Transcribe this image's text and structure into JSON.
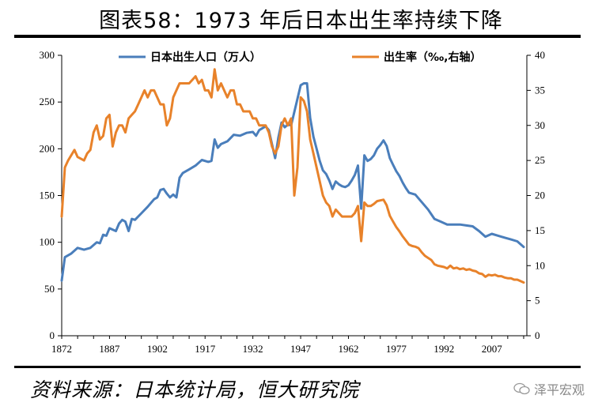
{
  "header": {
    "title": "图表58：1973 年后日本出生率持续下降"
  },
  "footer": {
    "source": "资料来源：日本统计局，恒大研究院",
    "watermark": "泽平宏观"
  },
  "chart_data": {
    "type": "line",
    "title": "图表58：1973 年后日本出生率持续下降",
    "x_ticks": [
      1872,
      1887,
      1902,
      1917,
      1932,
      1947,
      1962,
      1977,
      1992,
      2007
    ],
    "xlim": [
      1872,
      2018
    ],
    "y_left": {
      "lim": [
        0,
        300
      ],
      "ticks": [
        0,
        50,
        100,
        150,
        200,
        250,
        300
      ]
    },
    "y_right": {
      "lim": [
        0,
        40
      ],
      "ticks": [
        0,
        5,
        10,
        15,
        20,
        25,
        30,
        35,
        40
      ]
    },
    "series": [
      {
        "name": "日本出生人口（万人）",
        "axis": "left",
        "color": "#4a7ebb",
        "points": [
          [
            1872,
            59
          ],
          [
            1873,
            84
          ],
          [
            1875,
            88
          ],
          [
            1877,
            94
          ],
          [
            1879,
            92
          ],
          [
            1881,
            94
          ],
          [
            1883,
            100
          ],
          [
            1884,
            99
          ],
          [
            1885,
            108
          ],
          [
            1886,
            107
          ],
          [
            1887,
            115
          ],
          [
            1889,
            112
          ],
          [
            1890,
            120
          ],
          [
            1891,
            124
          ],
          [
            1892,
            122
          ],
          [
            1893,
            112
          ],
          [
            1894,
            125
          ],
          [
            1895,
            124
          ],
          [
            1897,
            131
          ],
          [
            1899,
            138
          ],
          [
            1901,
            146
          ],
          [
            1902,
            148
          ],
          [
            1903,
            156
          ],
          [
            1904,
            157
          ],
          [
            1905,
            152
          ],
          [
            1906,
            148
          ],
          [
            1907,
            151
          ],
          [
            1908,
            148
          ],
          [
            1909,
            169
          ],
          [
            1910,
            174
          ],
          [
            1912,
            178
          ],
          [
            1914,
            182
          ],
          [
            1916,
            188
          ],
          [
            1918,
            186
          ],
          [
            1919,
            187
          ],
          [
            1920,
            210
          ],
          [
            1921,
            201
          ],
          [
            1922,
            205
          ],
          [
            1924,
            208
          ],
          [
            1926,
            215
          ],
          [
            1928,
            214
          ],
          [
            1930,
            217
          ],
          [
            1932,
            218
          ],
          [
            1933,
            214
          ],
          [
            1934,
            220
          ],
          [
            1936,
            224
          ],
          [
            1937,
            220
          ],
          [
            1938,
            205
          ],
          [
            1939,
            190
          ],
          [
            1940,
            212
          ],
          [
            1941,
            228
          ],
          [
            1942,
            223
          ],
          [
            1943,
            226
          ],
          [
            1944,
            225
          ],
          [
            1947,
            268
          ],
          [
            1948,
            270
          ],
          [
            1949,
            270
          ],
          [
            1950,
            233
          ],
          [
            1951,
            213
          ],
          [
            1952,
            200
          ],
          [
            1953,
            187
          ],
          [
            1954,
            177
          ],
          [
            1955,
            173
          ],
          [
            1956,
            166
          ],
          [
            1957,
            157
          ],
          [
            1958,
            165
          ],
          [
            1959,
            162
          ],
          [
            1960,
            160
          ],
          [
            1961,
            159
          ],
          [
            1962,
            161
          ],
          [
            1963,
            166
          ],
          [
            1964,
            172
          ],
          [
            1965,
            182
          ],
          [
            1966,
            136
          ],
          [
            1967,
            193
          ],
          [
            1968,
            187
          ],
          [
            1969,
            189
          ],
          [
            1970,
            193
          ],
          [
            1971,
            200
          ],
          [
            1972,
            204
          ],
          [
            1973,
            209
          ],
          [
            1974,
            203
          ],
          [
            1975,
            190
          ],
          [
            1976,
            183
          ],
          [
            1977,
            176
          ],
          [
            1978,
            171
          ],
          [
            1979,
            164
          ],
          [
            1980,
            158
          ],
          [
            1981,
            153
          ],
          [
            1983,
            151
          ],
          [
            1985,
            143
          ],
          [
            1987,
            135
          ],
          [
            1989,
            125
          ],
          [
            1991,
            122
          ],
          [
            1993,
            119
          ],
          [
            1995,
            119
          ],
          [
            1997,
            119
          ],
          [
            1999,
            118
          ],
          [
            2001,
            117
          ],
          [
            2003,
            112
          ],
          [
            2005,
            106
          ],
          [
            2007,
            109
          ],
          [
            2009,
            107
          ],
          [
            2011,
            105
          ],
          [
            2013,
            103
          ],
          [
            2015,
            101
          ],
          [
            2017,
            95
          ]
        ]
      },
      {
        "name": "出生率（‰,右轴）",
        "axis": "right",
        "color": "#e8822a",
        "points": [
          [
            1872,
            17
          ],
          [
            1873,
            24
          ],
          [
            1874,
            25
          ],
          [
            1876,
            26.5
          ],
          [
            1877,
            25.5
          ],
          [
            1879,
            25
          ],
          [
            1880,
            26
          ],
          [
            1881,
            26.5
          ],
          [
            1882,
            29
          ],
          [
            1883,
            30
          ],
          [
            1884,
            28
          ],
          [
            1885,
            28.5
          ],
          [
            1886,
            31
          ],
          [
            1887,
            31.5
          ],
          [
            1888,
            27
          ],
          [
            1889,
            29
          ],
          [
            1890,
            30
          ],
          [
            1891,
            30
          ],
          [
            1892,
            29
          ],
          [
            1893,
            31
          ],
          [
            1894,
            31.5
          ],
          [
            1895,
            32
          ],
          [
            1896,
            33
          ],
          [
            1898,
            35
          ],
          [
            1899,
            34
          ],
          [
            1900,
            35
          ],
          [
            1901,
            35
          ],
          [
            1902,
            34
          ],
          [
            1903,
            33
          ],
          [
            1904,
            33
          ],
          [
            1905,
            30
          ],
          [
            1906,
            31
          ],
          [
            1907,
            34
          ],
          [
            1908,
            35
          ],
          [
            1909,
            36
          ],
          [
            1910,
            36
          ],
          [
            1911,
            36
          ],
          [
            1912,
            36
          ],
          [
            1914,
            37
          ],
          [
            1915,
            36
          ],
          [
            1916,
            36.5
          ],
          [
            1917,
            35
          ],
          [
            1918,
            35
          ],
          [
            1919,
            34
          ],
          [
            1920,
            38
          ],
          [
            1921,
            35
          ],
          [
            1922,
            36
          ],
          [
            1923,
            35
          ],
          [
            1924,
            34
          ],
          [
            1925,
            35
          ],
          [
            1926,
            35
          ],
          [
            1927,
            33
          ],
          [
            1928,
            33
          ],
          [
            1929,
            32
          ],
          [
            1930,
            32
          ],
          [
            1931,
            32
          ],
          [
            1932,
            31
          ],
          [
            1933,
            31
          ],
          [
            1934,
            30
          ],
          [
            1935,
            30
          ],
          [
            1936,
            30
          ],
          [
            1937,
            29
          ],
          [
            1938,
            27
          ],
          [
            1939,
            26
          ],
          [
            1940,
            27
          ],
          [
            1941,
            30
          ],
          [
            1942,
            31
          ],
          [
            1943,
            30
          ],
          [
            1944,
            31
          ],
          [
            1945,
            20
          ],
          [
            1946,
            24
          ],
          [
            1947,
            34
          ],
          [
            1948,
            33.5
          ],
          [
            1949,
            32
          ],
          [
            1950,
            28
          ],
          [
            1951,
            26
          ],
          [
            1952,
            24
          ],
          [
            1953,
            22
          ],
          [
            1954,
            20
          ],
          [
            1955,
            19
          ],
          [
            1956,
            18.5
          ],
          [
            1957,
            17
          ],
          [
            1958,
            18
          ],
          [
            1959,
            17.5
          ],
          [
            1960,
            17
          ],
          [
            1961,
            17
          ],
          [
            1962,
            17
          ],
          [
            1963,
            17
          ],
          [
            1964,
            17.5
          ],
          [
            1965,
            18.5
          ],
          [
            1966,
            13.5
          ],
          [
            1967,
            19
          ],
          [
            1968,
            18.5
          ],
          [
            1969,
            18.5
          ],
          [
            1970,
            18.8
          ],
          [
            1971,
            19.2
          ],
          [
            1972,
            19.3
          ],
          [
            1973,
            19.4
          ],
          [
            1974,
            18.6
          ],
          [
            1975,
            17.1
          ],
          [
            1976,
            16.3
          ],
          [
            1977,
            15.5
          ],
          [
            1978,
            14.9
          ],
          [
            1979,
            14.2
          ],
          [
            1980,
            13.6
          ],
          [
            1981,
            13.0
          ],
          [
            1982,
            12.8
          ],
          [
            1983,
            12.7
          ],
          [
            1984,
            12.5
          ],
          [
            1985,
            11.9
          ],
          [
            1986,
            11.4
          ],
          [
            1987,
            11.1
          ],
          [
            1988,
            10.8
          ],
          [
            1989,
            10.2
          ],
          [
            1990,
            10.0
          ],
          [
            1991,
            9.9
          ],
          [
            1992,
            9.8
          ],
          [
            1993,
            9.6
          ],
          [
            1994,
            10.0
          ],
          [
            1995,
            9.6
          ],
          [
            1996,
            9.7
          ],
          [
            1997,
            9.5
          ],
          [
            1998,
            9.6
          ],
          [
            1999,
            9.4
          ],
          [
            2000,
            9.5
          ],
          [
            2001,
            9.3
          ],
          [
            2002,
            9.2
          ],
          [
            2003,
            8.9
          ],
          [
            2004,
            8.8
          ],
          [
            2005,
            8.4
          ],
          [
            2006,
            8.7
          ],
          [
            2007,
            8.6
          ],
          [
            2008,
            8.7
          ],
          [
            2009,
            8.5
          ],
          [
            2010,
            8.5
          ],
          [
            2011,
            8.3
          ],
          [
            2012,
            8.2
          ],
          [
            2013,
            8.2
          ],
          [
            2014,
            8.0
          ],
          [
            2015,
            8.0
          ],
          [
            2016,
            7.8
          ],
          [
            2017,
            7.6
          ]
        ]
      }
    ]
  }
}
